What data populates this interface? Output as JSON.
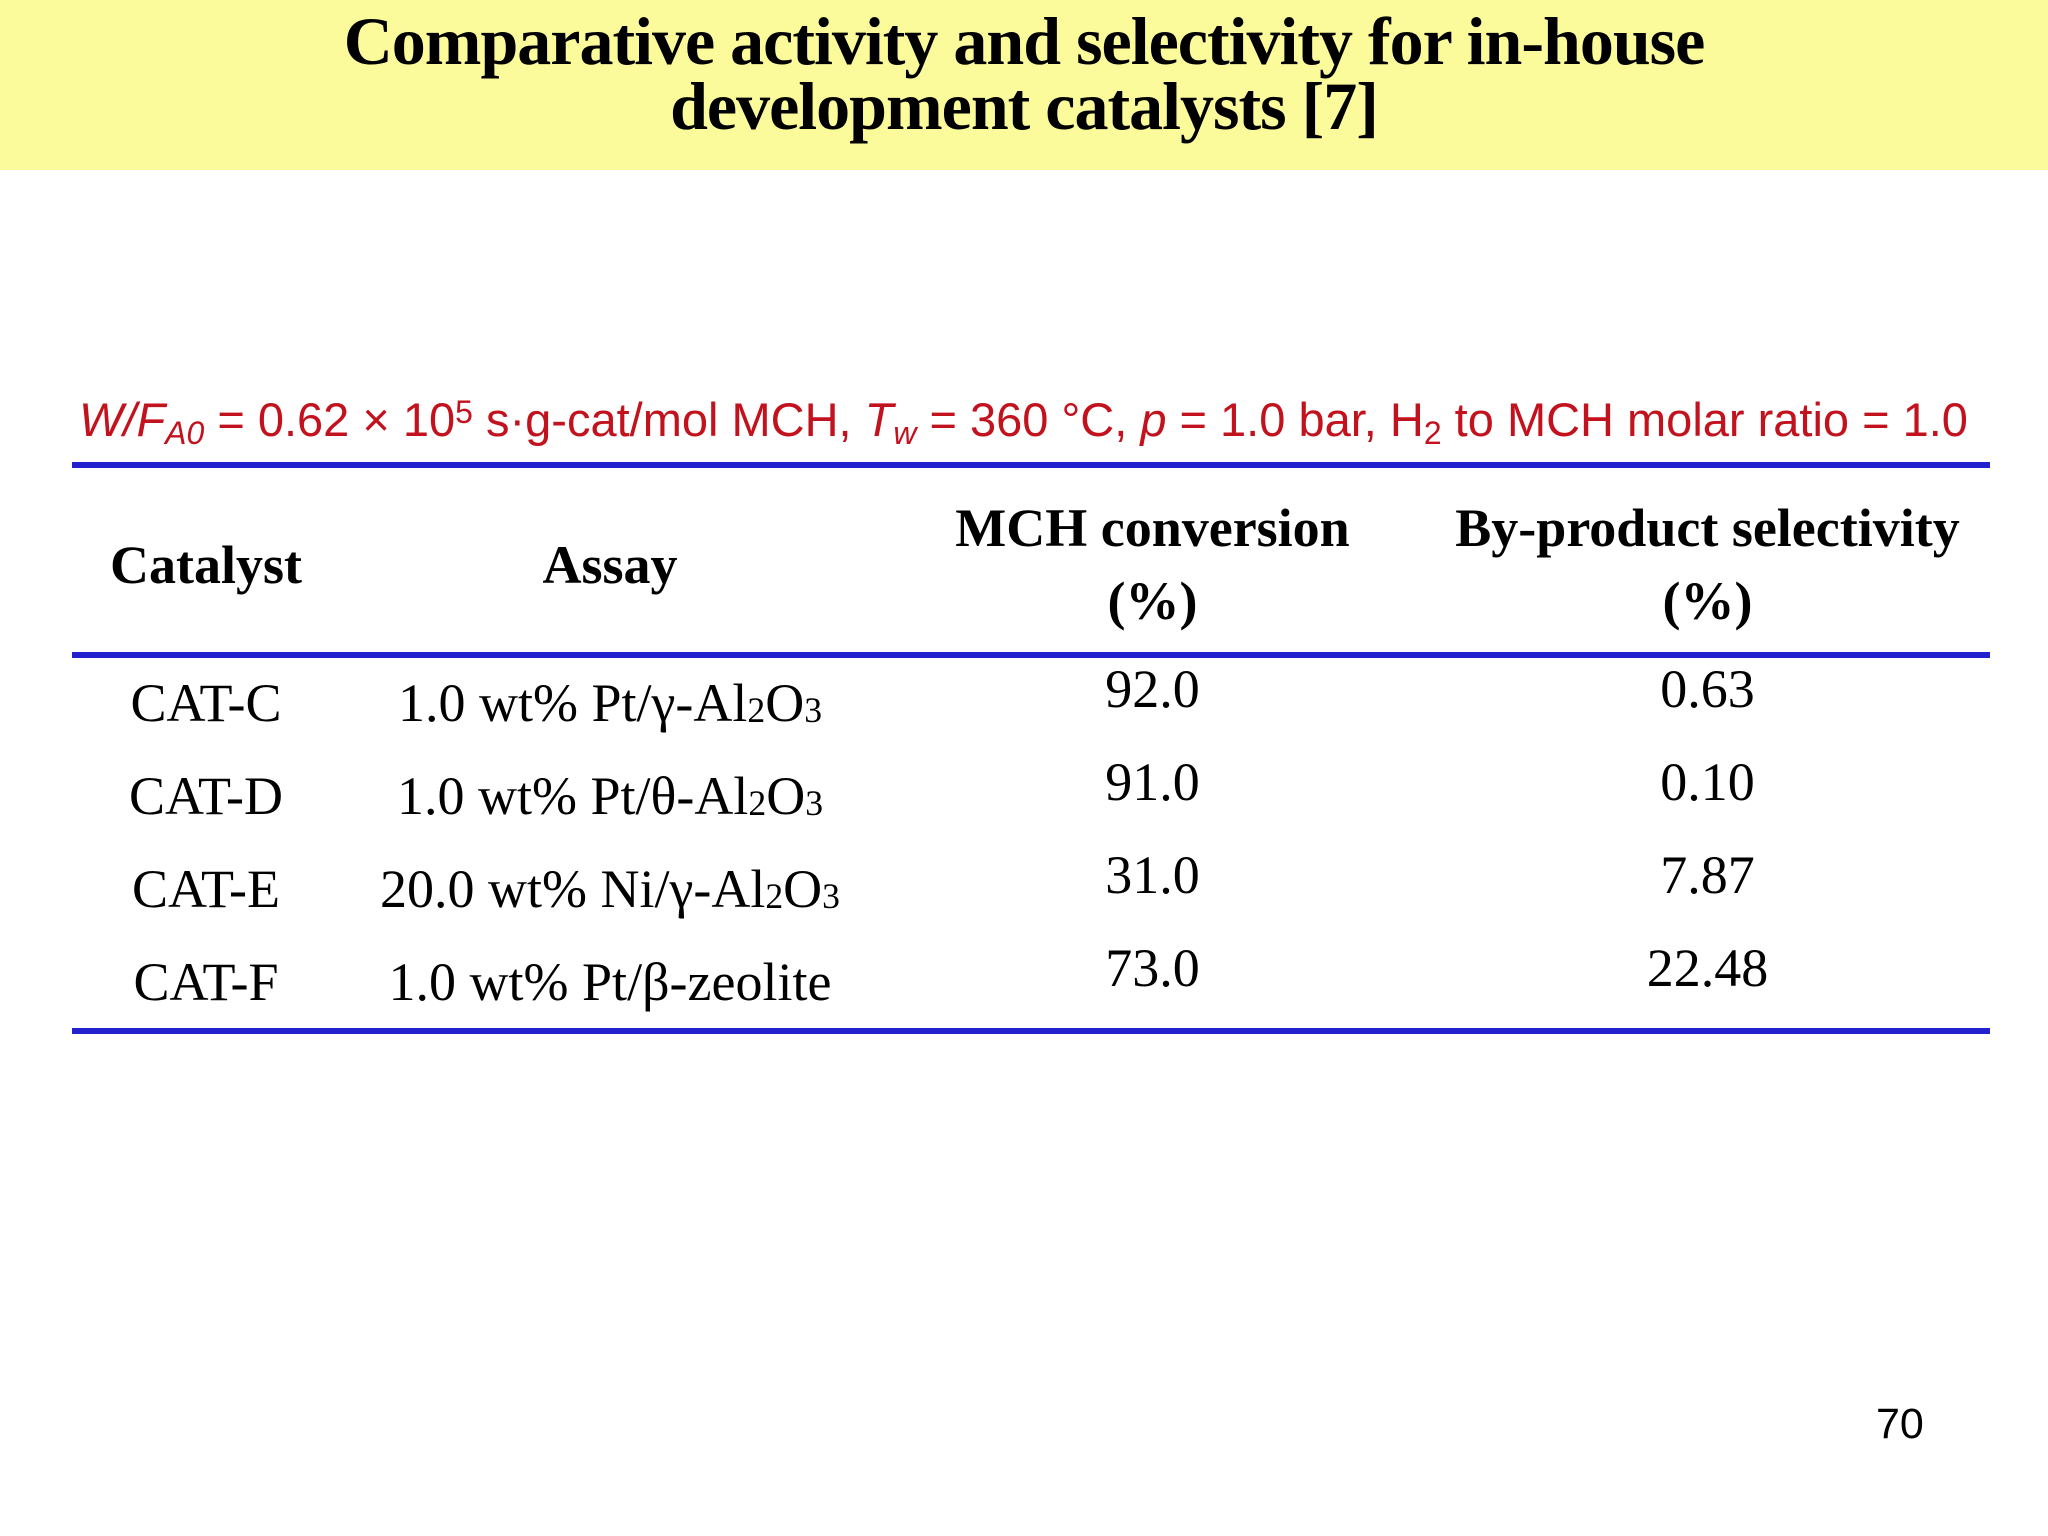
{
  "slide": {
    "title_line1": "Comparative activity and selectivity for in-house",
    "title_line2": "development catalysts [7]",
    "page_number": "70"
  },
  "colors": {
    "banner_bg": "#FBFB9B",
    "rule_blue": "#2121CE",
    "conditions_red": "#C2121E",
    "text": "#000000",
    "background": "#FFFFFF"
  },
  "conditions": {
    "wf": "W/F",
    "wf_sub": "A0",
    "eq1": " = 0.62 × 10",
    "ten_sup": "5",
    "units": " s·g-cat/mol MCH,  ",
    "t": "T",
    "t_sub": "w",
    "eq2": " = 360 °C, ",
    "p": "p",
    "eq3": " = 1.0 bar, H",
    "h2_sub": "2",
    "tail": " to MCH molar ratio = 1.0"
  },
  "table": {
    "headers": {
      "catalyst": "Catalyst",
      "assay": "Assay",
      "conversion_line1": "MCH conversion",
      "conversion_line2": "(%)",
      "selectivity_line1": "By-product selectivity",
      "selectivity_line2": "(%)"
    },
    "rows": [
      {
        "catalyst": "CAT-C",
        "assay_pre": "1.0 wt% Pt/γ-Al",
        "assay_sub1": "2",
        "assay_mid": "O",
        "assay_sub2": "3",
        "conversion": "92.0",
        "selectivity": "0.63"
      },
      {
        "catalyst": "CAT-D",
        "assay_pre": "1.0 wt% Pt/θ-Al",
        "assay_sub1": "2",
        "assay_mid": "O",
        "assay_sub2": "3",
        "conversion": "91.0",
        "selectivity": "0.10"
      },
      {
        "catalyst": "CAT-E",
        "assay_pre": "20.0 wt% Ni/γ-Al",
        "assay_sub1": "2",
        "assay_mid": "O",
        "assay_sub2": "3",
        "conversion": "31.0",
        "selectivity": "7.87"
      },
      {
        "catalyst": "CAT-F",
        "assay_pre": "1.0 wt% Pt/β-zeolite",
        "assay_sub1": "",
        "assay_mid": "",
        "assay_sub2": "",
        "conversion": "73.0",
        "selectivity": "22.48"
      }
    ]
  }
}
